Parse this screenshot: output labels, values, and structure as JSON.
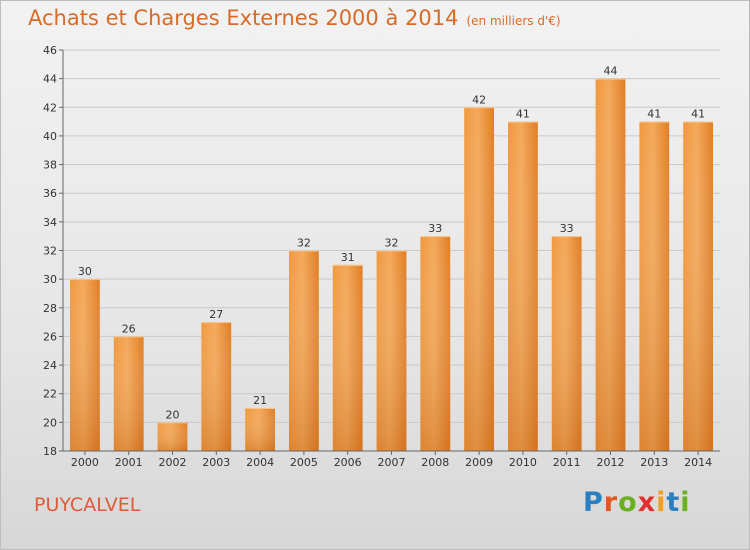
{
  "header": {
    "title": "Achats et Charges Externes 2000 à 2014",
    "unit": "(en milliers d'€)"
  },
  "footer": {
    "place": "PUYCALVEL",
    "logo_letters": [
      {
        "ch": "P",
        "color": "#2a7fc1"
      },
      {
        "ch": "r",
        "color": "#e05a20"
      },
      {
        "ch": "o",
        "color": "#6ab023"
      },
      {
        "ch": "x",
        "color": "#e03030"
      },
      {
        "ch": "i",
        "color": "#f0a020"
      },
      {
        "ch": "t",
        "color": "#2a7fc1"
      },
      {
        "ch": "i",
        "color": "#6ab023"
      }
    ]
  },
  "chart_data": {
    "type": "bar",
    "title": "Achats et Charges Externes 2000 à 2014",
    "subtitle": "(en milliers d'€)",
    "categories": [
      "2000",
      "2001",
      "2002",
      "2003",
      "2004",
      "2005",
      "2006",
      "2007",
      "2008",
      "2009",
      "2010",
      "2011",
      "2012",
      "2013",
      "2014"
    ],
    "values": [
      30,
      26,
      20,
      27,
      21,
      32,
      31,
      32,
      33,
      42,
      41,
      33,
      44,
      41,
      41
    ],
    "ylim": [
      18,
      46
    ],
    "yticks": [
      18,
      20,
      22,
      24,
      26,
      28,
      30,
      32,
      34,
      36,
      38,
      40,
      42,
      44,
      46
    ],
    "grid": true,
    "bar_color": "#ee8a35"
  }
}
